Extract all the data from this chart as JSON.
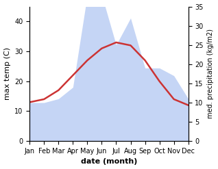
{
  "months": [
    "Jan",
    "Feb",
    "Mar",
    "Apr",
    "May",
    "Jun",
    "Jul",
    "Aug",
    "Sep",
    "Oct",
    "Nov",
    "Dec"
  ],
  "month_indices": [
    1,
    2,
    3,
    4,
    5,
    6,
    7,
    8,
    9,
    10,
    11,
    12
  ],
  "max_temp": [
    13,
    14,
    17,
    22,
    27,
    31,
    33,
    32,
    27,
    20,
    14,
    12
  ],
  "precipitation": [
    10,
    10,
    11,
    14,
    38,
    38,
    25,
    32,
    19,
    19,
    17,
    11
  ],
  "temp_color": "#cc3333",
  "precip_fill_color": "#c5d5f5",
  "xlabel": "date (month)",
  "ylabel_left": "max temp (C)",
  "ylabel_right": "med. precipitation (kg/m2)",
  "ylim_left": [
    0,
    45
  ],
  "ylim_right": [
    0,
    35
  ],
  "yticks_left": [
    0,
    10,
    20,
    30,
    40
  ],
  "yticks_right": [
    0,
    5,
    10,
    15,
    20,
    25,
    30,
    35
  ],
  "precip_scale": 1.2857,
  "background_color": "#ffffff",
  "line_width": 1.8,
  "label_fontsize": 8,
  "tick_fontsize": 7
}
